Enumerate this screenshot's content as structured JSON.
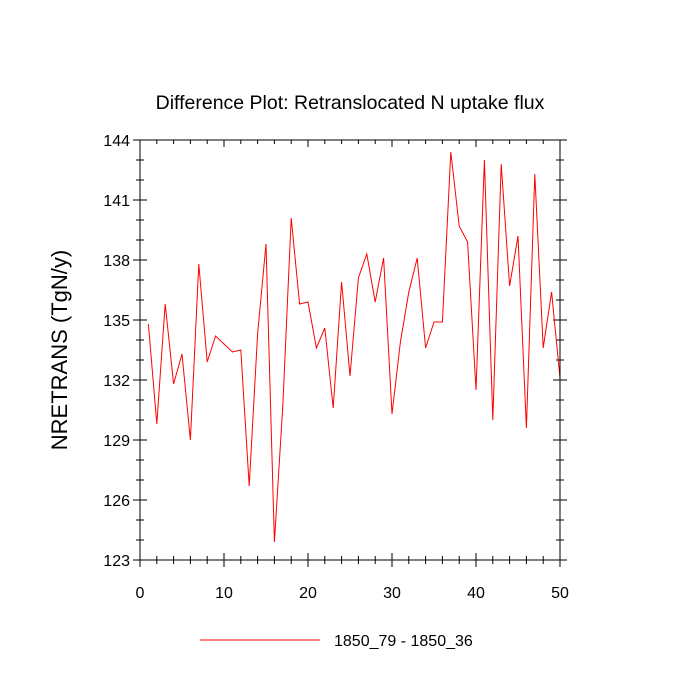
{
  "chart_data": {
    "type": "line",
    "title": "Difference Plot: Retranslocated N uptake flux",
    "xlabel": "",
    "ylabel": "NRETRANS  (TgN/y)",
    "xlim": [
      0,
      50
    ],
    "ylim": [
      123,
      144
    ],
    "xticks": [
      0,
      10,
      20,
      30,
      40,
      50
    ],
    "xtick_labels": [
      "0",
      "10",
      "20",
      "30",
      "40",
      "50"
    ],
    "yticks": [
      123,
      126,
      129,
      132,
      135,
      138,
      141,
      144
    ],
    "ytick_labels": [
      "123",
      "126",
      "129",
      "132",
      "135",
      "138",
      "141",
      "144"
    ],
    "grid": false,
    "legend_position": "bottom-center",
    "series": [
      {
        "name": "1850_79 - 1850_36",
        "color": "#ff0000",
        "x": [
          1,
          2,
          3,
          4,
          5,
          6,
          7,
          8,
          9,
          10,
          11,
          12,
          13,
          14,
          15,
          16,
          17,
          18,
          19,
          20,
          21,
          22,
          23,
          24,
          25,
          26,
          27,
          28,
          29,
          30,
          31,
          32,
          33,
          34,
          35,
          36,
          37,
          38,
          39,
          40,
          41,
          42,
          43,
          44,
          45,
          46,
          47,
          48,
          49,
          50
        ],
        "values": [
          134.8,
          129.8,
          135.8,
          131.8,
          133.3,
          129.0,
          137.8,
          132.9,
          134.2,
          133.8,
          133.4,
          133.5,
          126.7,
          134.3,
          138.8,
          123.9,
          130.7,
          140.1,
          135.8,
          135.9,
          133.6,
          134.6,
          130.6,
          136.9,
          132.2,
          137.1,
          138.3,
          135.9,
          138.1,
          130.3,
          133.9,
          136.4,
          138.1,
          133.6,
          134.9,
          134.9,
          143.4,
          139.7,
          138.9,
          131.5,
          143.0,
          130.0,
          142.8,
          136.7,
          139.2,
          129.6,
          142.3,
          133.6,
          136.4,
          132.1
        ]
      }
    ]
  }
}
